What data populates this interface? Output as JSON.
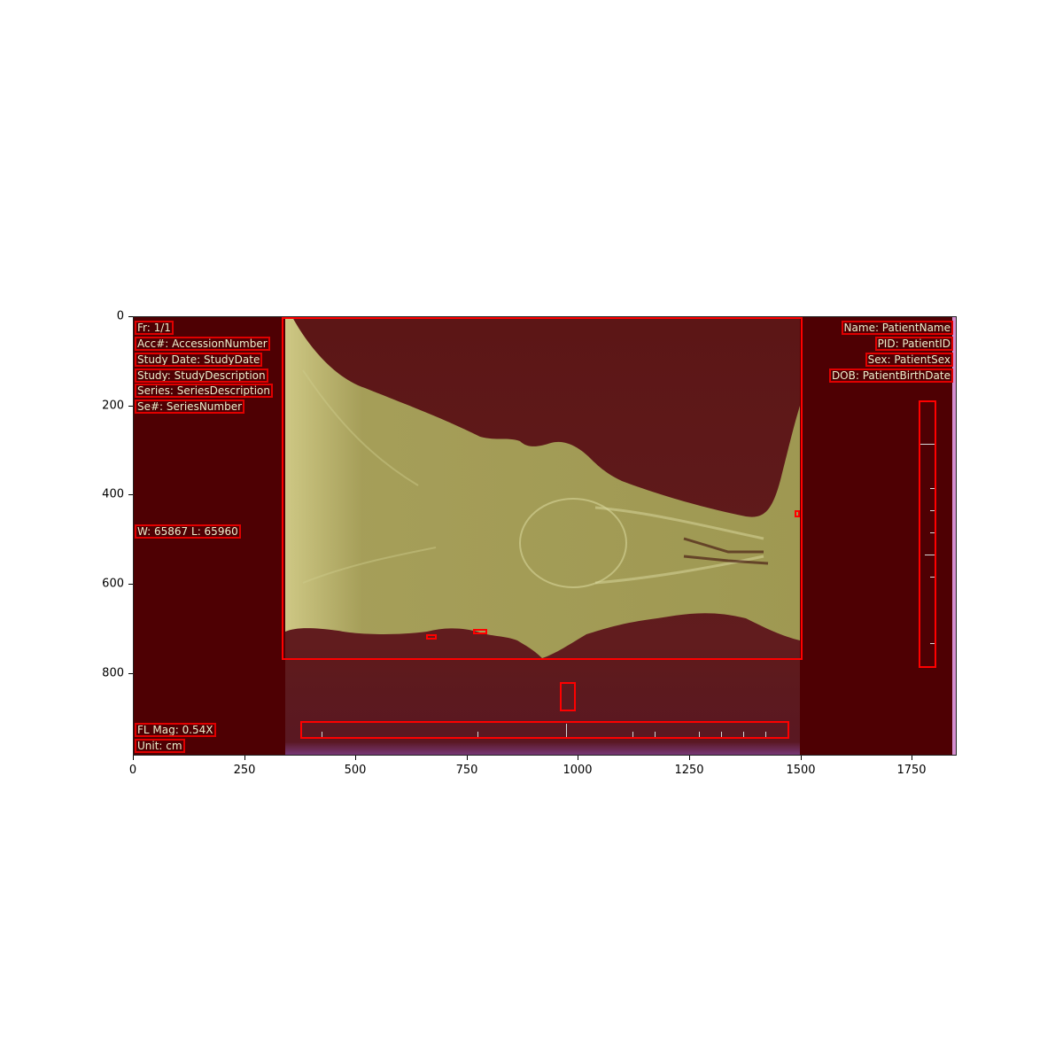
{
  "overlay": {
    "top_left": [
      "Fr: 1/1",
      "Acc#: AccessionNumber",
      "Study Date: StudyDate",
      "Study: StudyDescription",
      "Series: SeriesDescription",
      "Se#: SeriesNumber"
    ],
    "top_right": [
      "Name: PatientName",
      "PID: PatientID",
      "Sex: PatientSex",
      "DOB: PatientBirthDate"
    ],
    "window_level": "W: 65867 L: 65960",
    "bottom_left": [
      "FL Mag: 0.54X",
      "Unit: cm"
    ]
  },
  "axes": {
    "x_ticks": [
      "0",
      "250",
      "500",
      "750",
      "1000",
      "1250",
      "1500",
      "1750"
    ],
    "y_ticks": [
      "0",
      "200",
      "400",
      "600",
      "800"
    ]
  },
  "colors": {
    "background": "#4e0003",
    "tissue": "#a8a35a",
    "annotation_box": "#ff0000"
  }
}
